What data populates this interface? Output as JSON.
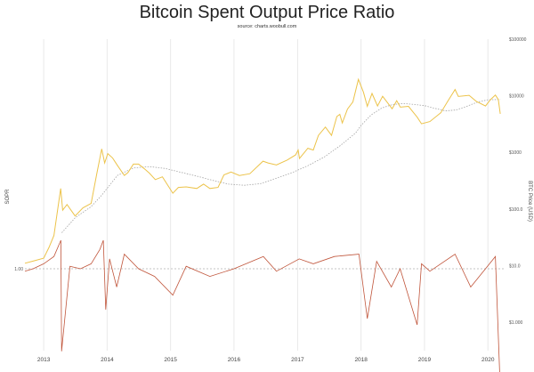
{
  "chart_data": {
    "type": "line",
    "title": "Bitcoin Spent Output Price Ratio",
    "subtitle": "source: charts.woobull.com",
    "ylabel_left": "SOPR",
    "ylabel_right": "BTC Price (USD)",
    "x_ticks": [
      "2013",
      "2014",
      "2015",
      "2016",
      "2017",
      "2018",
      "2019",
      "2020"
    ],
    "right_axis_scale": "log",
    "right_axis_ticks": [
      "$1.000",
      "$10.0",
      "$100.0",
      "$1000",
      "$10000",
      "$100000"
    ],
    "left_axis_ticks": [
      "1.00"
    ],
    "sopr_reference": 1.0,
    "grid": "vertical",
    "colors": {
      "price": "#ecc34a",
      "sopr": "#c0553b",
      "ma": "#a3a3a3",
      "grid": "#e9e9e9"
    },
    "series": [
      {
        "role": "price",
        "x": [
          "2012-09-15",
          "2012-11-01",
          "2013-01-01",
          "2013-02-01",
          "2013-03-01",
          "2013-04-09",
          "2013-04-20",
          "2013-05-15",
          "2013-07-01",
          "2013-08-15",
          "2013-10-01",
          "2013-11-01",
          "2013-12-01",
          "2013-12-18",
          "2014-01-05",
          "2014-02-01",
          "2014-03-01",
          "2014-04-10",
          "2014-05-01",
          "2014-06-01",
          "2014-07-01",
          "2014-08-01",
          "2014-09-01",
          "2014-10-05",
          "2014-11-15",
          "2015-01-14",
          "2015-02-15",
          "2015-04-01",
          "2015-06-01",
          "2015-07-10",
          "2015-08-15",
          "2015-10-01",
          "2015-11-04",
          "2015-12-15",
          "2016-02-01",
          "2016-04-01",
          "2016-06-16",
          "2016-07-15",
          "2016-09-01",
          "2016-11-01",
          "2016-12-20",
          "2017-01-04",
          "2017-01-12",
          "2017-03-01",
          "2017-04-01",
          "2017-05-01",
          "2017-06-10",
          "2017-07-15",
          "2017-08-15",
          "2017-09-01",
          "2017-09-15",
          "2017-10-15",
          "2017-11-15",
          "2017-12-17",
          "2018-01-15",
          "2018-02-06",
          "2018-03-05",
          "2018-04-06",
          "2018-05-05",
          "2018-06-29",
          "2018-07-25",
          "2018-08-15",
          "2018-10-01",
          "2018-11-20",
          "2018-12-15",
          "2019-02-01",
          "2019-04-05",
          "2019-05-15",
          "2019-06-26",
          "2019-07-15",
          "2019-09-15",
          "2019-10-25",
          "2019-12-18",
          "2020-01-15",
          "2020-02-13",
          "2020-03-01",
          "2020-03-12"
        ],
        "values": [
          11,
          12,
          13.5,
          21,
          34,
          230,
          95,
          120,
          75,
          105,
          125,
          400,
          1150,
          650,
          950,
          800,
          590,
          390,
          440,
          620,
          620,
          520,
          430,
          330,
          370,
          190,
          240,
          245,
          230,
          275,
          230,
          240,
          400,
          450,
          390,
          420,
          700,
          650,
          600,
          730,
          900,
          1100,
          780,
          1180,
          1100,
          2000,
          2800,
          2000,
          4300,
          4700,
          3300,
          5800,
          7800,
          19500,
          11500,
          6500,
          11000,
          6600,
          9800,
          5900,
          8200,
          6300,
          6500,
          4200,
          3200,
          3500,
          5000,
          8000,
          12900,
          9700,
          10200,
          8000,
          6600,
          8500,
          10300,
          8600,
          4800
        ]
      },
      {
        "role": "ma",
        "x": [
          "2013-04-15",
          "2013-07-01",
          "2013-10-01",
          "2013-12-01",
          "2014-03-01",
          "2014-06-01",
          "2014-09-01",
          "2014-12-01",
          "2015-03-01",
          "2015-06-01",
          "2015-09-01",
          "2015-12-01",
          "2016-03-01",
          "2016-06-01",
          "2016-09-01",
          "2016-12-01",
          "2017-03-01",
          "2017-06-01",
          "2017-09-01",
          "2017-12-01",
          "2018-01-01",
          "2018-03-01",
          "2018-05-01",
          "2018-07-01",
          "2018-09-01",
          "2018-11-01",
          "2019-01-01",
          "2019-03-01",
          "2019-05-01",
          "2019-07-01",
          "2019-09-01",
          "2019-11-01",
          "2020-01-01",
          "2020-03-12"
        ],
        "values": [
          38,
          70,
          110,
          175,
          390,
          530,
          560,
          520,
          445,
          380,
          320,
          275,
          262,
          280,
          350,
          440,
          580,
          820,
          1300,
          2200,
          3000,
          4600,
          6100,
          7000,
          7300,
          7050,
          6700,
          6000,
          5400,
          5600,
          6500,
          7700,
          8500,
          8600
        ]
      },
      {
        "role": "sopr",
        "x": [
          "2012-09-15",
          "2012-11-01",
          "2013-01-01",
          "2013-03-01",
          "2013-04-10",
          "2013-04-14",
          "2013-06-01",
          "2013-08-01",
          "2013-10-01",
          "2013-11-20",
          "2013-12-10",
          "2013-12-24",
          "2014-01-15",
          "2014-02-25",
          "2014-04-10",
          "2014-07-01",
          "2014-10-01",
          "2015-01-14",
          "2015-04-01",
          "2015-08-15",
          "2016-01-01",
          "2016-06-18",
          "2016-09-01",
          "2017-01-10",
          "2017-04-01",
          "2017-08-01",
          "2017-12-20",
          "2018-02-06",
          "2018-04-01",
          "2018-06-24",
          "2018-08-14",
          "2018-11-20",
          "2018-12-15",
          "2019-02-01",
          "2019-06-26",
          "2019-09-24",
          "2019-12-18",
          "2020-02-13",
          "2020-03-12"
        ],
        "values": [
          0.99,
          1.0,
          1.02,
          1.05,
          1.12,
          0.72,
          1.01,
          1.0,
          1.02,
          1.08,
          1.12,
          0.85,
          1.04,
          0.93,
          1.06,
          1.0,
          0.97,
          0.9,
          1.01,
          0.97,
          1.0,
          1.05,
          0.99,
          1.04,
          1.02,
          1.05,
          1.06,
          0.82,
          1.03,
          0.93,
          1.0,
          0.8,
          1.02,
          0.99,
          1.06,
          0.93,
          1.0,
          1.05,
          0.62
        ]
      }
    ]
  }
}
